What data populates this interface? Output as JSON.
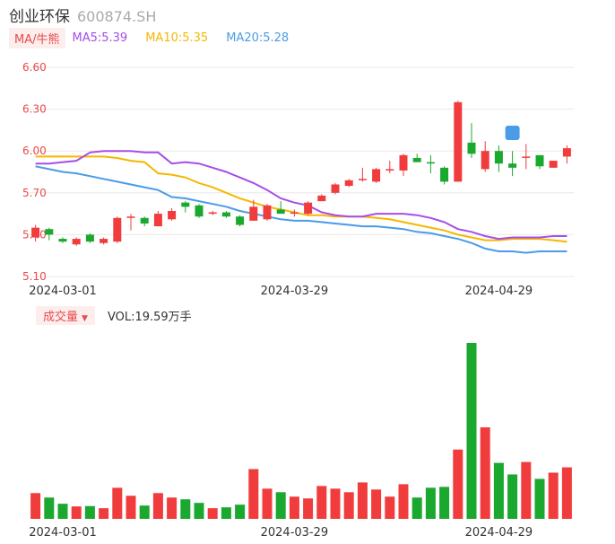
{
  "header": {
    "name": "创业环保",
    "code": "600874.SH"
  },
  "ma_legend": {
    "tag": "MA/牛熊",
    "ma5": "MA5:5.39",
    "ma10": "MA10:5.35",
    "ma20": "MA20:5.28"
  },
  "volume_legend": {
    "tag": "成交量",
    "value": "VOL:19.59万手"
  },
  "colors": {
    "up": "#f03c3c",
    "down": "#1aa82e",
    "ma5": "#a64ee8",
    "ma10": "#f5b800",
    "ma20": "#4a9be8",
    "grid": "#e8e8e8",
    "axis_text": "#e84a4a"
  },
  "chart_data": [
    {
      "type": "candlestick",
      "title": "",
      "y_ticks": [
        "6.60",
        "6.30",
        "6.00",
        "5.70",
        "5.40",
        "5.10"
      ],
      "ylim": [
        5.1,
        6.6
      ],
      "x_tick_labels": [
        "2024-03-01",
        "2024-03-29",
        "2024-04-29"
      ],
      "x_tick_index": [
        2,
        19,
        34
      ],
      "candles": [
        {
          "o": 5.38,
          "c": 5.45,
          "h": 5.47,
          "l": 5.35
        },
        {
          "o": 5.44,
          "c": 5.4,
          "h": 5.45,
          "l": 5.36
        },
        {
          "o": 5.37,
          "c": 5.35,
          "h": 5.38,
          "l": 5.34
        },
        {
          "o": 5.33,
          "c": 5.37,
          "h": 5.38,
          "l": 5.32
        },
        {
          "o": 5.4,
          "c": 5.35,
          "h": 5.41,
          "l": 5.34
        },
        {
          "o": 5.34,
          "c": 5.37,
          "h": 5.38,
          "l": 5.33
        },
        {
          "o": 5.35,
          "c": 5.52,
          "h": 5.53,
          "l": 5.34
        },
        {
          "o": 5.52,
          "c": 5.53,
          "h": 5.55,
          "l": 5.43
        },
        {
          "o": 5.52,
          "c": 5.48,
          "h": 5.53,
          "l": 5.46
        },
        {
          "o": 5.46,
          "c": 5.55,
          "h": 5.57,
          "l": 5.46
        },
        {
          "o": 5.51,
          "c": 5.57,
          "h": 5.59,
          "l": 5.5
        },
        {
          "o": 5.63,
          "c": 5.6,
          "h": 5.64,
          "l": 5.56
        },
        {
          "o": 5.61,
          "c": 5.53,
          "h": 5.62,
          "l": 5.52
        },
        {
          "o": 5.55,
          "c": 5.56,
          "h": 5.57,
          "l": 5.54
        },
        {
          "o": 5.56,
          "c": 5.53,
          "h": 5.57,
          "l": 5.52
        },
        {
          "o": 5.53,
          "c": 5.47,
          "h": 5.54,
          "l": 5.46
        },
        {
          "o": 5.5,
          "c": 5.6,
          "h": 5.65,
          "l": 5.5
        },
        {
          "o": 5.51,
          "c": 5.61,
          "h": 5.62,
          "l": 5.5
        },
        {
          "o": 5.58,
          "c": 5.55,
          "h": 5.64,
          "l": 5.55
        },
        {
          "o": 5.56,
          "c": 5.56,
          "h": 5.58,
          "l": 5.53
        },
        {
          "o": 5.55,
          "c": 5.63,
          "h": 5.64,
          "l": 5.54
        },
        {
          "o": 5.64,
          "c": 5.68,
          "h": 5.69,
          "l": 5.64
        },
        {
          "o": 5.7,
          "c": 5.76,
          "h": 5.77,
          "l": 5.69
        },
        {
          "o": 5.75,
          "c": 5.79,
          "h": 5.8,
          "l": 5.74
        },
        {
          "o": 5.8,
          "c": 5.8,
          "h": 5.88,
          "l": 5.78
        },
        {
          "o": 5.78,
          "c": 5.87,
          "h": 5.88,
          "l": 5.77
        },
        {
          "o": 5.86,
          "c": 5.87,
          "h": 5.93,
          "l": 5.84
        },
        {
          "o": 5.86,
          "c": 5.97,
          "h": 5.98,
          "l": 5.82
        },
        {
          "o": 5.95,
          "c": 5.92,
          "h": 5.98,
          "l": 5.92
        },
        {
          "o": 5.92,
          "c": 5.91,
          "h": 5.97,
          "l": 5.84
        },
        {
          "o": 5.88,
          "c": 5.78,
          "h": 5.89,
          "l": 5.76
        },
        {
          "o": 5.78,
          "c": 6.35,
          "h": 6.36,
          "l": 5.78
        },
        {
          "o": 6.06,
          "c": 5.98,
          "h": 6.2,
          "l": 5.95
        },
        {
          "o": 5.87,
          "c": 6.0,
          "h": 6.07,
          "l": 5.85
        },
        {
          "o": 6.0,
          "c": 5.91,
          "h": 6.04,
          "l": 5.85
        },
        {
          "o": 5.91,
          "c": 5.88,
          "h": 6.0,
          "l": 5.82
        },
        {
          "o": 5.96,
          "c": 5.96,
          "h": 6.05,
          "l": 5.87
        },
        {
          "o": 5.97,
          "c": 5.89,
          "h": 5.97,
          "l": 5.87
        },
        {
          "o": 5.88,
          "c": 5.93,
          "h": 5.93,
          "l": 5.88
        },
        {
          "o": 5.96,
          "c": 6.02,
          "h": 6.04,
          "l": 5.91
        }
      ],
      "ma5": [
        5.91,
        5.91,
        5.92,
        5.93,
        5.99,
        6.0,
        6.0,
        6.0,
        5.99,
        5.99,
        5.91,
        5.92,
        5.91,
        5.88,
        5.85,
        5.81,
        5.77,
        5.72,
        5.66,
        5.63,
        5.61,
        5.56,
        5.54,
        5.53,
        5.53,
        5.55,
        5.55,
        5.55,
        5.54,
        5.52,
        5.49,
        5.44,
        5.42,
        5.39,
        5.37,
        5.38,
        5.38,
        5.38,
        5.39,
        5.39
      ],
      "ma10": [
        5.96,
        5.96,
        5.96,
        5.96,
        5.96,
        5.96,
        5.95,
        5.93,
        5.92,
        5.84,
        5.83,
        5.81,
        5.77,
        5.74,
        5.7,
        5.66,
        5.63,
        5.6,
        5.58,
        5.56,
        5.54,
        5.54,
        5.53,
        5.53,
        5.53,
        5.52,
        5.51,
        5.49,
        5.47,
        5.45,
        5.43,
        5.4,
        5.38,
        5.36,
        5.36,
        5.37,
        5.37,
        5.37,
        5.36,
        5.35
      ],
      "ma20": [
        5.89,
        5.87,
        5.85,
        5.84,
        5.82,
        5.8,
        5.78,
        5.76,
        5.74,
        5.72,
        5.67,
        5.66,
        5.64,
        5.62,
        5.6,
        5.57,
        5.55,
        5.53,
        5.51,
        5.5,
        5.5,
        5.49,
        5.48,
        5.47,
        5.46,
        5.46,
        5.45,
        5.44,
        5.42,
        5.41,
        5.39,
        5.37,
        5.34,
        5.3,
        5.28,
        5.28,
        5.27,
        5.28,
        5.28,
        5.28
      ]
    },
    {
      "type": "bar",
      "title": "",
      "series_name": "VOL",
      "ylim": [
        0,
        10
      ],
      "x_tick_labels": [
        "2024-03-01",
        "2024-03-29",
        "2024-04-29"
      ],
      "values": [
        1.45,
        1.2,
        0.85,
        0.7,
        0.72,
        0.6,
        1.75,
        1.3,
        0.75,
        1.45,
        1.2,
        1.1,
        0.9,
        0.6,
        0.65,
        0.8,
        2.8,
        1.7,
        1.5,
        1.25,
        1.15,
        1.85,
        1.7,
        1.5,
        2.05,
        1.65,
        1.25,
        1.95,
        1.2,
        1.75,
        1.8,
        3.9,
        9.9,
        5.15,
        3.15,
        2.5,
        3.2,
        2.25,
        2.6,
        2.9
      ]
    }
  ]
}
